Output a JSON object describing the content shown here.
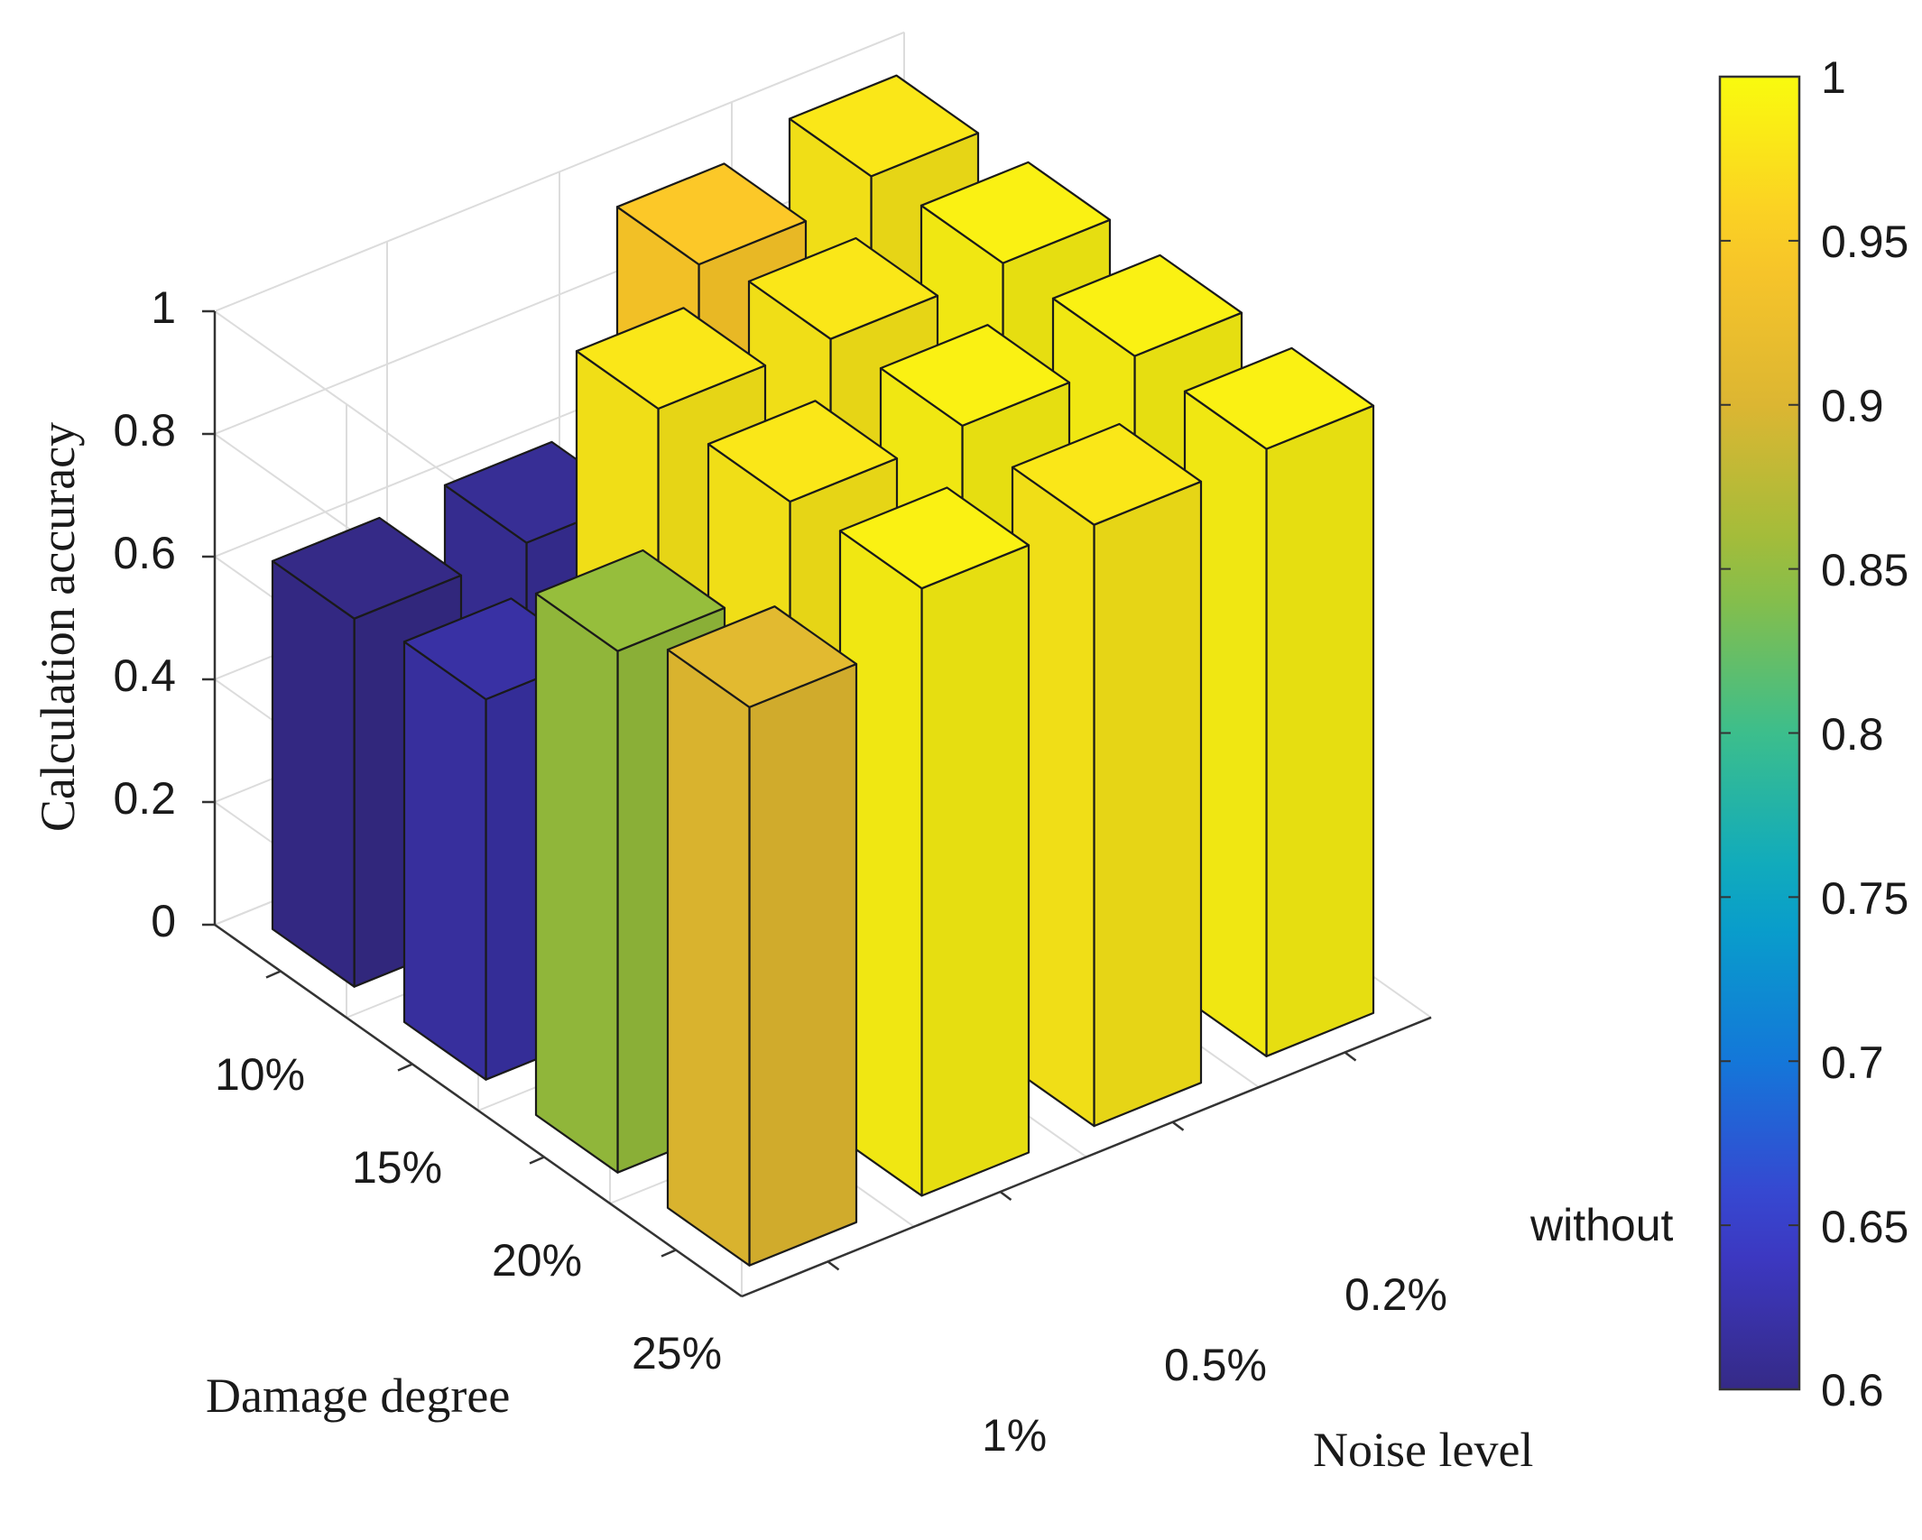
{
  "chart_data": {
    "type": "bar3d",
    "title": "",
    "zlabel": "Calculation accuracy",
    "xlabel": "Noise level",
    "ylabel": "Damage degree",
    "noise_levels": [
      "1%",
      "0.5%",
      "0.2%",
      "without"
    ],
    "damage_degrees": [
      "10%",
      "15%",
      "20%",
      "25%"
    ],
    "zlim": [
      0,
      1
    ],
    "zticks": [
      "0",
      "0.2",
      "0.4",
      "0.6",
      "0.8",
      "1"
    ],
    "values": [
      [
        0.6,
        0.61,
        0.95,
        0.98
      ],
      [
        0.62,
        0.98,
        0.98,
        0.99
      ],
      [
        0.85,
        0.98,
        0.99,
        0.99
      ],
      [
        0.91,
        0.99,
        0.98,
        0.99
      ]
    ],
    "colorbar": {
      "range": [
        0.6,
        1
      ],
      "ticks": [
        "0.6",
        "0.65",
        "0.7",
        "0.75",
        "0.8",
        "0.85",
        "0.9",
        "0.95",
        "1"
      ],
      "colormap": "parula"
    }
  }
}
